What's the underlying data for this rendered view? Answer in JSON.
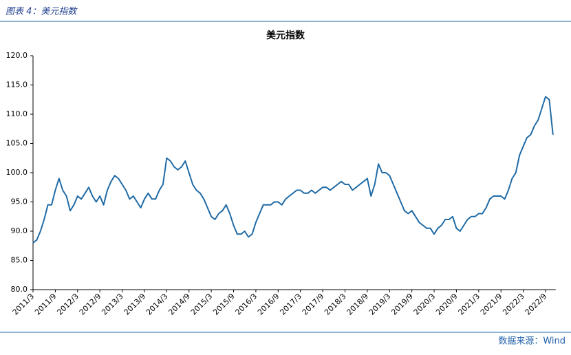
{
  "header": {
    "title": "图表 4：美元指数"
  },
  "footer": {
    "source": "数据来源：Wind"
  },
  "chart_data": {
    "type": "line",
    "title": "美元指数",
    "color": "#1f6aa5",
    "categories": [
      "2011/3",
      null,
      null,
      null,
      null,
      null,
      "2011/9",
      null,
      null,
      null,
      null,
      null,
      "2012/3",
      null,
      null,
      null,
      null,
      null,
      "2012/9",
      null,
      null,
      null,
      null,
      null,
      "2013/3",
      null,
      null,
      null,
      null,
      null,
      "2013/9",
      null,
      null,
      null,
      null,
      null,
      "2014/3",
      null,
      null,
      null,
      null,
      null,
      "2014/9",
      null,
      null,
      null,
      null,
      null,
      "2015/3",
      null,
      null,
      null,
      null,
      null,
      "2015/9",
      null,
      null,
      null,
      null,
      null,
      "2016/3",
      null,
      null,
      null,
      null,
      null,
      "2016/9",
      null,
      null,
      null,
      null,
      null,
      "2017/3",
      null,
      null,
      null,
      null,
      null,
      "2017/9",
      null,
      null,
      null,
      null,
      null,
      "2018/3",
      null,
      null,
      null,
      null,
      null,
      "2018/9",
      null,
      null,
      null,
      null,
      null,
      "2019/3",
      null,
      null,
      null,
      null,
      null,
      "2019/9",
      null,
      null,
      null,
      null,
      null,
      "2020/3",
      null,
      null,
      null,
      null,
      null,
      "2020/9",
      null,
      null,
      null,
      null,
      null,
      "2021/3",
      null,
      null,
      null,
      null,
      null,
      "2021/9",
      null,
      null,
      null,
      null,
      null,
      "2022/3",
      null,
      null,
      null,
      null,
      null,
      "2022/9",
      null,
      null
    ],
    "values": [
      88,
      88.5,
      90,
      92,
      94.5,
      94.5,
      97,
      99,
      97,
      96,
      93.5,
      94.5,
      96,
      95.5,
      96.5,
      97.5,
      96,
      95,
      96,
      94.5,
      97,
      98.5,
      99.5,
      99,
      98,
      97,
      95.5,
      96,
      95,
      94,
      95.5,
      96.5,
      95.5,
      95.5,
      97,
      98,
      102.5,
      102,
      101,
      100.5,
      101,
      102,
      100,
      98,
      97,
      96.5,
      95.5,
      94,
      92.5,
      92,
      93,
      93.5,
      94.5,
      93,
      91,
      89.5,
      89.5,
      90,
      89,
      89.5,
      91.5,
      93,
      94.5,
      94.5,
      94.5,
      95,
      95,
      94.5,
      95.5,
      96,
      96.5,
      97,
      97,
      96.5,
      96.5,
      97,
      96.5,
      97,
      97.5,
      97.5,
      97,
      97.5,
      98,
      98.5,
      98,
      98,
      97,
      97.5,
      98,
      98.5,
      99,
      96,
      98,
      101.5,
      100,
      100,
      99.5,
      98,
      96.5,
      95,
      93.5,
      93,
      93.5,
      92.5,
      91.5,
      91,
      90.5,
      90.5,
      89.5,
      90.5,
      91,
      92,
      92,
      92.5,
      90.5,
      90,
      91,
      92,
      92.5,
      92.5,
      93,
      93,
      94,
      95.5,
      96,
      96,
      96,
      95.5,
      97,
      99,
      100,
      103,
      104.5,
      106,
      106.5,
      108,
      109,
      111,
      113,
      112.5,
      106.5
    ],
    "ylim": [
      80,
      120
    ],
    "yticks": [
      {
        "value": 80,
        "label": "80.0"
      },
      {
        "value": 85,
        "label": "85.0"
      },
      {
        "value": 90,
        "label": "90.0"
      },
      {
        "value": 95,
        "label": "95.0"
      },
      {
        "value": 100,
        "label": "100.0"
      },
      {
        "value": 105,
        "label": "105.0"
      },
      {
        "value": 110,
        "label": "110.0"
      },
      {
        "value": 115,
        "label": "115.0"
      },
      {
        "value": 120,
        "label": "120.0"
      }
    ],
    "grid": false
  }
}
